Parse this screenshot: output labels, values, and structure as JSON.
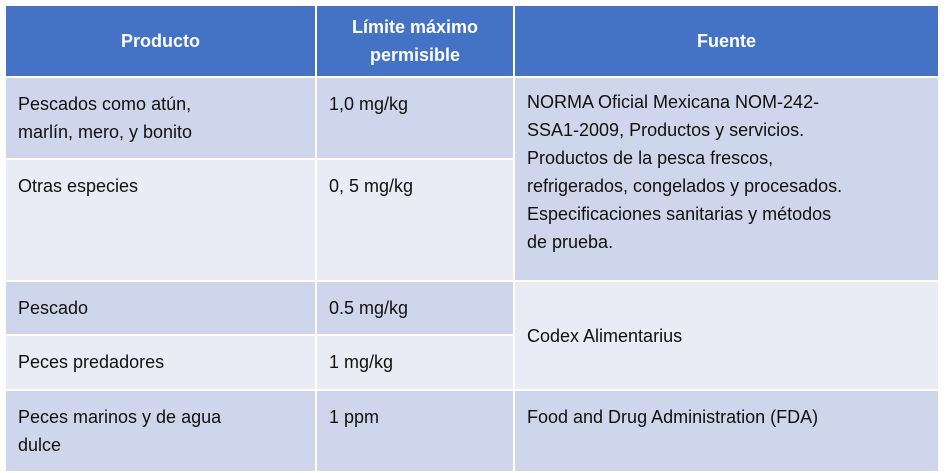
{
  "table": {
    "header": [
      [
        "Producto"
      ],
      [
        "Límite máximo",
        "permisible"
      ],
      [
        "Fuente"
      ]
    ],
    "rows": [
      {
        "producto": [
          "Pescados como atún,",
          "marlín, mero, y bonito"
        ],
        "limite": [
          "1,0 mg/kg"
        ],
        "fuente": [
          "NORMA Oficial Mexicana NOM-242-",
          "SSA1-2009, Productos y servicios.",
          "Productos de la pesca frescos,",
          "refrigerados, congelados y procesados.",
          "Especificaciones sanitarias y métodos",
          "de prueba."
        ]
      },
      {
        "producto": [
          "Otras especies"
        ],
        "limite": [
          "0, 5 mg/kg"
        ]
      },
      {
        "producto": [
          "Pescado"
        ],
        "limite": [
          "0.5 mg/kg"
        ],
        "fuente": [
          "Codex Alimentarius"
        ]
      },
      {
        "producto": [
          "Peces predadores"
        ],
        "limite": [
          "1 mg/kg"
        ]
      },
      {
        "producto": [
          "Peces marinos y de agua",
          "dulce"
        ],
        "limite": [
          "1 ppm"
        ],
        "fuente": [
          "Food and Drug Administration (FDA)"
        ]
      }
    ]
  }
}
